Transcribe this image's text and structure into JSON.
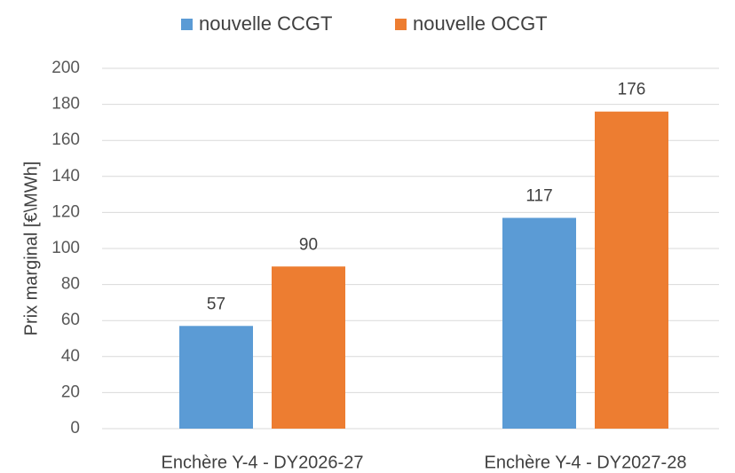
{
  "chart_data": {
    "type": "bar",
    "y_label": "Prix marginal [€\\MWh]",
    "categories": [
      "Enchère Y-4 - DY2026-27",
      "Enchère Y-4 - DY2027-28"
    ],
    "series": [
      {
        "name": "nouvelle CCGT",
        "color": "#5b9bd5",
        "values": [
          57,
          117
        ]
      },
      {
        "name": "nouvelle OCGT",
        "color": "#ed7d31",
        "values": [
          90,
          176
        ]
      }
    ],
    "ylim": [
      0,
      200
    ],
    "yticks": [
      0,
      20,
      40,
      60,
      80,
      100,
      120,
      140,
      160,
      180,
      200
    ],
    "grid": true,
    "legend": "top"
  }
}
